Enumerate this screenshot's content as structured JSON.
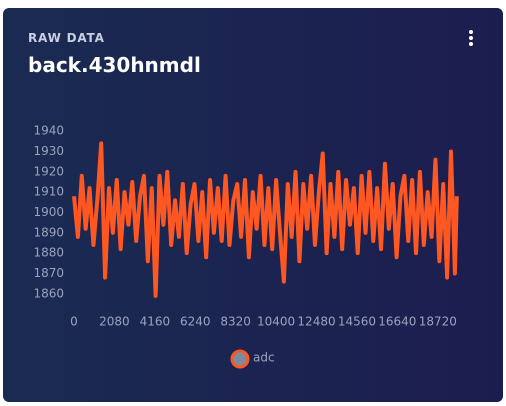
{
  "card": {
    "label": "RAW DATA",
    "title": "back.430hnmdl"
  },
  "chart_data": {
    "type": "line",
    "x": [
      0,
      200,
      400,
      600,
      800,
      1000,
      1200,
      1400,
      1600,
      1800,
      2000,
      2200,
      2400,
      2600,
      2800,
      3000,
      3200,
      3400,
      3600,
      3800,
      4000,
      4200,
      4400,
      4600,
      4800,
      5000,
      5200,
      5400,
      5600,
      5800,
      6000,
      6200,
      6400,
      6600,
      6800,
      7000,
      7200,
      7400,
      7600,
      7800,
      8000,
      8200,
      8400,
      8600,
      8800,
      9000,
      9200,
      9400,
      9600,
      9800,
      10000,
      10200,
      10400,
      10600,
      10800,
      11000,
      11200,
      11400,
      11600,
      11800,
      12000,
      12200,
      12400,
      12600,
      12800,
      13000,
      13200,
      13400,
      13600,
      13800,
      14000,
      14200,
      14400,
      14600,
      14800,
      15000,
      15200,
      15400,
      15600,
      15800,
      16000,
      16200,
      16400,
      16600,
      16800,
      17000,
      17200,
      17400,
      17600,
      17800,
      18000,
      18200,
      18400,
      18600,
      18800,
      19000,
      19200,
      19400,
      19600,
      19700
    ],
    "series": [
      {
        "name": "adc",
        "color": "#ff5722",
        "marker_color": "#7f8a9c",
        "values": [
          1908,
          1888,
          1918,
          1892,
          1912,
          1884,
          1906,
          1934,
          1868,
          1912,
          1890,
          1916,
          1882,
          1910,
          1894,
          1915,
          1886,
          1908,
          1918,
          1876,
          1912,
          1859,
          1918,
          1894,
          1920,
          1884,
          1906,
          1888,
          1914,
          1880,
          1904,
          1914,
          1886,
          1910,
          1878,
          1916,
          1890,
          1912,
          1886,
          1918,
          1884,
          1906,
          1914,
          1888,
          1916,
          1878,
          1910,
          1892,
          1918,
          1884,
          1912,
          1882,
          1916,
          1890,
          1866,
          1914,
          1888,
          1920,
          1876,
          1914,
          1892,
          1918,
          1884,
          1910,
          1929,
          1880,
          1914,
          1888,
          1920,
          1882,
          1916,
          1894,
          1912,
          1880,
          1918,
          1890,
          1920,
          1886,
          1912,
          1882,
          1924,
          1892,
          1914,
          1878,
          1908,
          1918,
          1886,
          1916,
          1880,
          1920,
          1884,
          1910,
          1888,
          1926,
          1876,
          1914,
          1868,
          1930,
          1870,
          1908
        ]
      }
    ],
    "xlim": [
      0,
      19760
    ],
    "xticks": [
      0,
      2080,
      4160,
      6240,
      8320,
      10400,
      12480,
      14560,
      16640,
      18720
    ],
    "ylim": [
      1855,
      1945
    ],
    "yticks": [
      1860,
      1870,
      1880,
      1890,
      1900,
      1910,
      1920,
      1930,
      1940
    ],
    "grid": false
  }
}
